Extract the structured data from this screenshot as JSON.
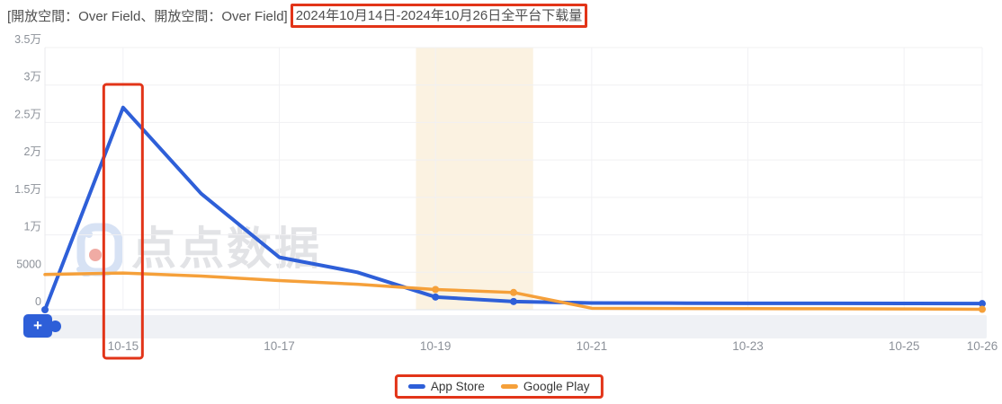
{
  "title": {
    "prefix": "[開放空間：Over Field、開放空間：Over Field]",
    "boxed_date_range": "2024年10月14日-2024年10月26日全平台下载量"
  },
  "watermark": {
    "text": "点点数据"
  },
  "controls": {
    "add_button_label": "+"
  },
  "legend": {
    "items": [
      {
        "label": "App Store",
        "color": "#2e5fd8"
      },
      {
        "label": "Google Play",
        "color": "#f5a03a"
      }
    ]
  },
  "chart_data": {
    "type": "line",
    "title": "2024年10月14日-2024年10月26日全平台下载量",
    "categories": [
      "10-14",
      "10-15",
      "10-16",
      "10-17",
      "10-18",
      "10-19",
      "10-20",
      "10-21",
      "10-22",
      "10-23",
      "10-24",
      "10-25",
      "10-26"
    ],
    "x_tick_labels_shown": [
      "10-15",
      "10-17",
      "10-19",
      "10-21",
      "10-23",
      "10-25",
      "10-26"
    ],
    "y_tick_labels": [
      "0",
      "5000",
      "1万",
      "1.5万",
      "2万",
      "2.5万",
      "3万",
      "3.5万"
    ],
    "ylim": [
      0,
      35000
    ],
    "grid": true,
    "legend_position": "bottom",
    "series": [
      {
        "name": "App Store",
        "color": "#2e5fd8",
        "values": [
          0,
          27000,
          15500,
          7000,
          5000,
          1700,
          1100,
          900,
          880,
          860,
          850,
          840,
          820
        ],
        "marker_indices": [
          0,
          5,
          6,
          12
        ]
      },
      {
        "name": "Google Play",
        "color": "#f5a03a",
        "values": [
          4700,
          4900,
          4500,
          3900,
          3400,
          2700,
          2300,
          200,
          170,
          150,
          130,
          110,
          60
        ],
        "marker_indices": [
          5,
          6,
          12
        ]
      }
    ],
    "highlight_band": {
      "start": "10-19",
      "end": "10-20",
      "color": "#fbf2e1"
    },
    "annotations": {
      "boxed_x_label": "10-15",
      "box_color": "#e23418"
    }
  }
}
